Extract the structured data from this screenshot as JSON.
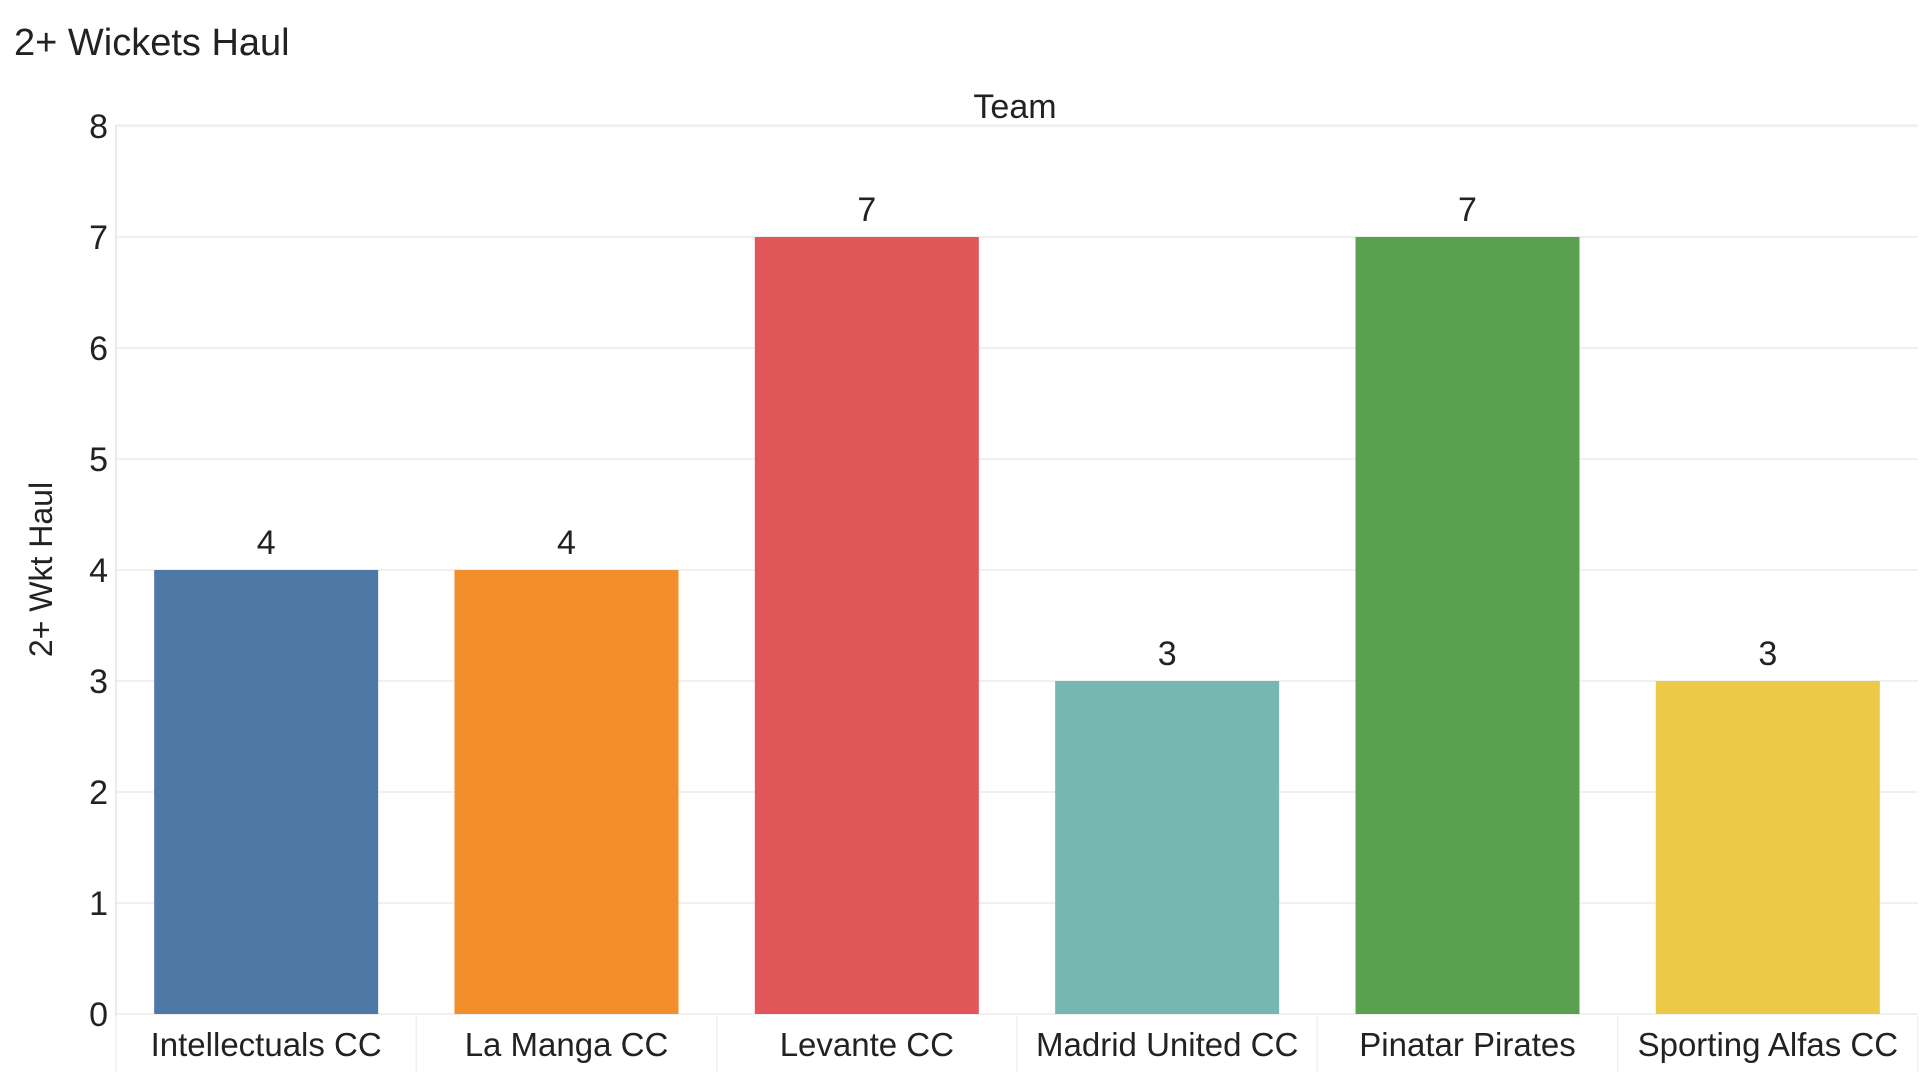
{
  "chart_data": {
    "type": "bar",
    "title": "2+ Wickets Haul",
    "column_header": "Team",
    "xlabel": "",
    "ylabel": "2+ Wkt Haul",
    "categories": [
      "Intellectuals CC",
      "La Manga CC",
      "Levante CC",
      "Madrid United CC",
      "Pinatar Pirates",
      "Sporting Alfas CC"
    ],
    "values": [
      4,
      4,
      7,
      3,
      7,
      3
    ],
    "data_labels": [
      "4",
      "4",
      "7",
      "3",
      "7",
      "3"
    ],
    "colors": [
      "#4e79a7",
      "#f28e2b",
      "#e15759",
      "#76b7b2",
      "#59a14f",
      "#edc948"
    ],
    "ylim": [
      0,
      8
    ],
    "yticks": [
      "0",
      "1",
      "2",
      "3",
      "4",
      "5",
      "6",
      "7",
      "8"
    ],
    "grid": true,
    "legend": "none"
  }
}
